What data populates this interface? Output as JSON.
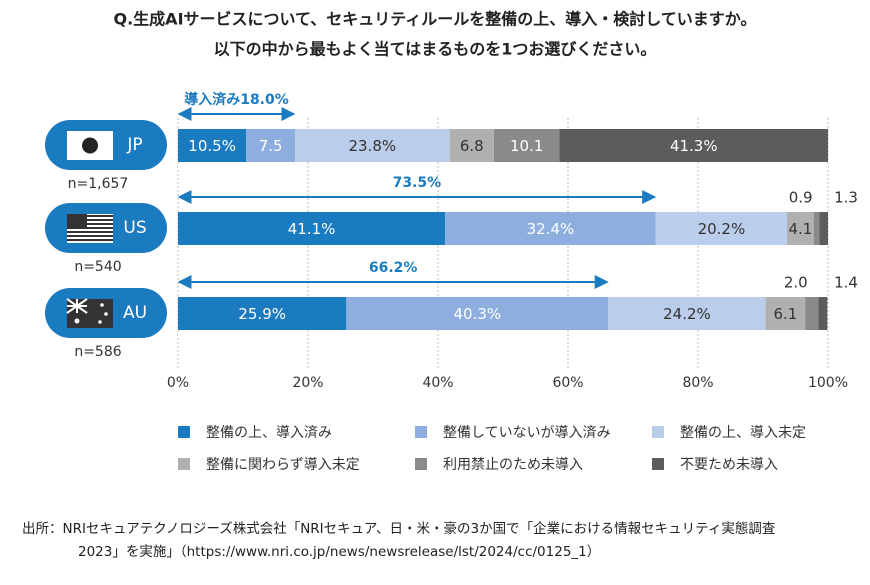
{
  "chart_data": {
    "type": "stacked-bar-horizontal",
    "title": "Q.生成AIサービスについて、セキュリティルールを整備の上、導入・検討していますか。",
    "subtitle": "以下の中から最もよく当てはまるものを1つお選びください。",
    "categories": [
      "JP",
      "US",
      "AU"
    ],
    "sample_sizes": [
      "n=1,657",
      "n=540",
      "n=586"
    ],
    "series": [
      {
        "name": "整備の上、導入済み",
        "color": "#1b7bc0",
        "values": [
          10.5,
          41.1,
          25.9
        ],
        "value_labels": [
          "10.5%",
          "41.1%",
          "25.9%"
        ]
      },
      {
        "name": "整備していないが導入済み",
        "color": "#8eaedf",
        "values": [
          7.5,
          32.4,
          40.3
        ],
        "value_labels": [
          "7.5",
          "32.4%",
          "40.3%"
        ]
      },
      {
        "name": "整備の上、導入未定",
        "color": "#bacdeb",
        "values": [
          23.8,
          20.2,
          24.2
        ],
        "value_labels": [
          "23.8%",
          "20.2%",
          "24.2%"
        ]
      },
      {
        "name": "整備に関わらず導入未定",
        "color": "#b0b0b0",
        "values": [
          6.8,
          4.1,
          6.1
        ],
        "value_labels": [
          "6.8",
          "4.1",
          "6.1"
        ]
      },
      {
        "name": "利用禁止のため未導入",
        "color": "#8a8a8a",
        "values": [
          10.1,
          0.9,
          2.0
        ],
        "value_labels": [
          "10.1",
          "0.9",
          "2.0"
        ]
      },
      {
        "name": "不要ため未導入",
        "color": "#5c5c5c",
        "values": [
          41.3,
          1.3,
          1.4
        ],
        "value_labels": [
          "41.3%",
          "1.3",
          "1.4"
        ]
      }
    ],
    "annotations": [
      {
        "label": "導入済み18.0%",
        "value": 18.0
      },
      {
        "label": "73.5%",
        "value": 73.5
      },
      {
        "label": "66.2%",
        "value": 66.2
      }
    ],
    "xlim": [
      0,
      100
    ],
    "xticks": [
      {
        "value": 0,
        "label": "0%"
      },
      {
        "value": 20,
        "label": "20%"
      },
      {
        "value": 40,
        "label": "40%"
      },
      {
        "value": 60,
        "label": "60%"
      },
      {
        "value": 80,
        "label": "80%"
      },
      {
        "value": 100,
        "label": "100%"
      }
    ],
    "grid": true,
    "source": [
      "出所：NRIセキュアテクノロジーズ株式会社「NRIセキュア、日・米・豪の3か国で「企業における情報セキュリティ実態調査",
      "2023」を実施」（https://www.nri.co.jp/news/newsrelease/lst/2024/cc/0125_1）"
    ]
  }
}
